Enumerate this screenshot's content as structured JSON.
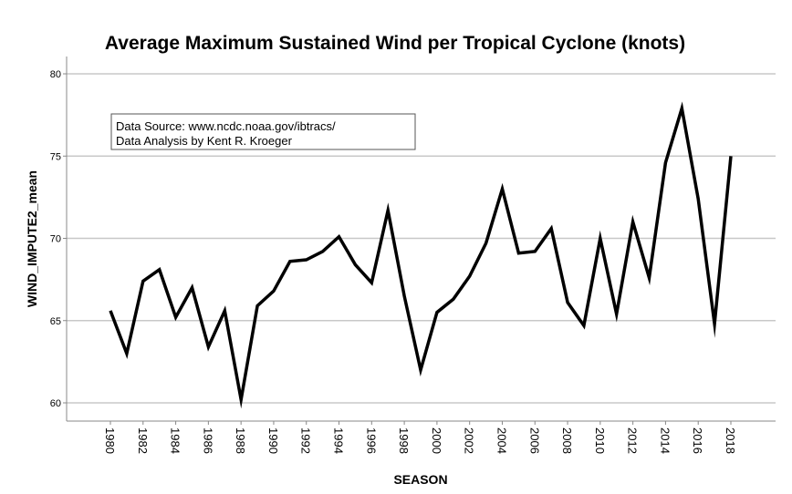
{
  "chart_data": {
    "type": "line",
    "title": "Average Maximum Sustained Wind per Tropical Cyclone (knots)",
    "xlabel": "SEASON",
    "ylabel": "WIND_IMPUTE2_mean",
    "ylim": [
      59,
      81
    ],
    "yticks": [
      60,
      65,
      70,
      75,
      80
    ],
    "xlim": [
      1978.5,
      2020.5
    ],
    "xticks": [
      1980,
      1982,
      1984,
      1986,
      1988,
      1990,
      1992,
      1994,
      1996,
      1998,
      2000,
      2002,
      2004,
      2006,
      2008,
      2010,
      2012,
      2014,
      2016,
      2018
    ],
    "grid": "horizontal",
    "annotation": {
      "lines": [
        "Data Source: www.ncdc.noaa.gov/ibtracs/",
        "Data Analysis by Kent R. Kroeger"
      ],
      "placement": "top-left"
    },
    "series": [
      {
        "name": "WIND_IMPUTE2_mean",
        "color": "#000000",
        "x": [
          1980,
          1981,
          1982,
          1983,
          1984,
          1985,
          1986,
          1987,
          1988,
          1989,
          1990,
          1991,
          1992,
          1993,
          1994,
          1995,
          1996,
          1997,
          1998,
          1999,
          2000,
          2001,
          2002,
          2003,
          2004,
          2005,
          2006,
          2007,
          2008,
          2009,
          2010,
          2011,
          2012,
          2013,
          2014,
          2015,
          2016,
          2017,
          2018
        ],
        "values": [
          65.6,
          63.0,
          67.4,
          68.1,
          65.2,
          67.0,
          63.4,
          65.6,
          60.2,
          65.9,
          66.8,
          68.6,
          68.7,
          69.2,
          70.1,
          68.4,
          67.3,
          71.7,
          66.5,
          62.0,
          65.5,
          66.3,
          67.7,
          69.7,
          73.0,
          69.1,
          69.2,
          70.6,
          66.1,
          64.7,
          70.0,
          65.4,
          71.0,
          67.6,
          74.6,
          77.9,
          72.4,
          64.8,
          75.0
        ]
      }
    ]
  }
}
